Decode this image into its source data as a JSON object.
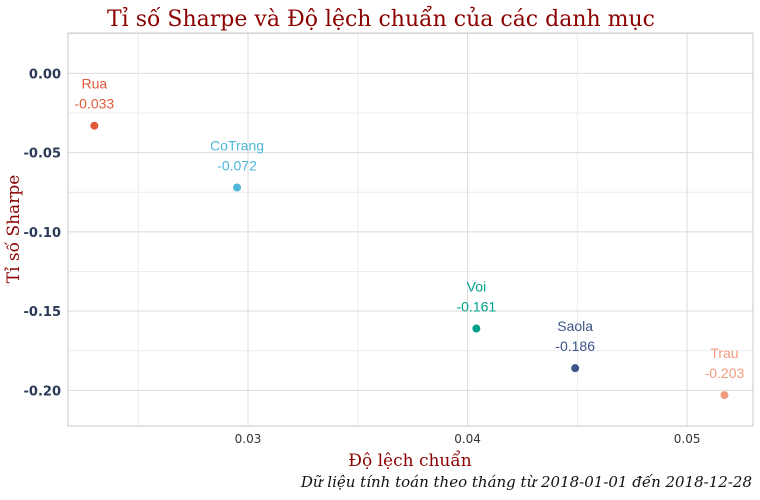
{
  "chart_data": {
    "type": "scatter",
    "title": "Tỉ số Sharpe và Độ lệch chuẩn của các danh mục",
    "xlabel": "Độ lệch chuẩn",
    "ylabel": "Tỉ số Sharpe",
    "caption": "Dữ liệu tính toán theo tháng từ 2018-01-01 đến 2018-12-28",
    "xlim": [
      0.0218,
      0.053
    ],
    "ylim": [
      -0.2225,
      0.0255
    ],
    "x_ticks": [
      0.03,
      0.04,
      0.05
    ],
    "x_tick_labels": [
      "0.03",
      "0.04",
      "0.05"
    ],
    "y_ticks": [
      0.0,
      -0.05,
      -0.1,
      -0.15,
      -0.2
    ],
    "y_tick_labels": [
      "0.00",
      "-0.05",
      "-0.10",
      "-0.15",
      "-0.20"
    ],
    "grid": true,
    "points": [
      {
        "name": "Rua",
        "x": 0.023,
        "y": -0.033,
        "label": "-0.033",
        "color": "#e05a3a"
      },
      {
        "name": "CoTrang",
        "x": 0.0295,
        "y": -0.072,
        "label": "-0.072",
        "color": "#4db8d8"
      },
      {
        "name": "Voi",
        "x": 0.0404,
        "y": -0.161,
        "label": "-0.161",
        "color": "#00a08a"
      },
      {
        "name": "Saola",
        "x": 0.0449,
        "y": -0.186,
        "label": "-0.186",
        "color": "#3c5488"
      },
      {
        "name": "Trau",
        "x": 0.0517,
        "y": -0.203,
        "label": "-0.203",
        "color": "#f39b7f"
      }
    ]
  }
}
